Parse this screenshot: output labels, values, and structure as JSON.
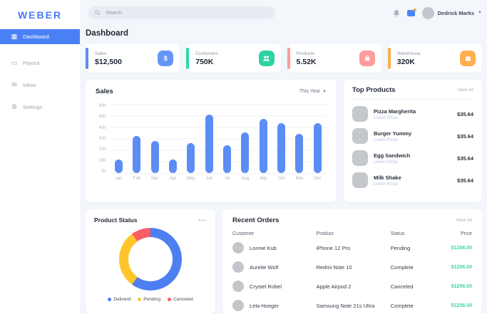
{
  "sidebar": {
    "logo": "WEBER",
    "items": [
      {
        "label": "Dashboard",
        "glyph": "▦"
      },
      {
        "label": "Payout",
        "glyph": "▭"
      },
      {
        "label": "Inbox",
        "glyph": "✉"
      },
      {
        "label": "Settings",
        "glyph": "⚙"
      }
    ]
  },
  "header": {
    "search_placeholder": "Search",
    "user_name": "Dedrick Marks"
  },
  "page_title": "Dashboard",
  "stats": [
    {
      "label": "Sales",
      "value": "$12,500",
      "accent": "#5b8df5",
      "icon_bg": "#6695fa",
      "glyph": "$"
    },
    {
      "label": "Customers",
      "value": "750K",
      "accent": "#2bd9a2",
      "icon_bg": "#2ed3a3"
    },
    {
      "label": "Products",
      "value": "5.52K",
      "accent": "#ff9b9b",
      "icon_bg": "#ff9b9b"
    },
    {
      "label": "Warehouse",
      "value": "320K",
      "accent": "#ffad4d",
      "icon_bg": "#ffad4d"
    }
  ],
  "sales_panel": {
    "title": "Sales",
    "filter": "This Year"
  },
  "top_products": {
    "title": "Top Products",
    "view_all": "View All",
    "items": [
      {
        "name": "Pizza Margherita",
        "subtitle": "Lorem Pizza",
        "price": "$35.64"
      },
      {
        "name": "Burger Yummy",
        "subtitle": "Lorem Pizza",
        "price": "$35.64"
      },
      {
        "name": "Egg Sandwich",
        "subtitle": "Lorem Pizza",
        "price": "$35.64"
      },
      {
        "name": "Milk Shake",
        "subtitle": "Lorem Pizza",
        "price": "$35.64"
      }
    ]
  },
  "product_status": {
    "title": "Product Status",
    "menu": "•••"
  },
  "recent_orders": {
    "title": "Recent Orders",
    "view_all": "View All",
    "columns": [
      "Customer",
      "Product",
      "Status",
      "Price"
    ],
    "price_color": "#41d3ae",
    "rows": [
      {
        "customer": "Lonnie Kub",
        "product": "iPhone 12 Pro",
        "status": "Pending",
        "price": "$1256.00"
      },
      {
        "customer": "Aurelie Wolf",
        "product": "Redmi Note 10",
        "status": "Complete",
        "price": "$1256.00"
      },
      {
        "customer": "Crystel Robel",
        "product": "Apple Airpod 2",
        "status": "Canceled",
        "price": "$1256.00"
      },
      {
        "customer": "Lela Hoeger",
        "product": "Samsung Note 21s Ultra",
        "status": "Complete",
        "price": "$1256.00"
      }
    ]
  },
  "chart_data": [
    {
      "type": "bar",
      "title": "Sales",
      "filter": "This Year",
      "bar_color": "#5b8df5",
      "ylim": [
        0,
        60
      ],
      "unit": "K",
      "yticks": [
        "60K",
        "50K",
        "40K",
        "30K",
        "20K",
        "10K",
        "0K"
      ],
      "bars": [
        {
          "label": "Jan",
          "value": 12
        },
        {
          "label": "Feb",
          "value": 32
        },
        {
          "label": "Mar",
          "value": 28
        },
        {
          "label": "Apr",
          "value": 12
        },
        {
          "label": "May",
          "value": 26
        },
        {
          "label": "Jun",
          "value": 51
        },
        {
          "label": "Jul",
          "value": 24
        },
        {
          "label": "Aug",
          "value": 35
        },
        {
          "label": "Sep",
          "value": 47
        },
        {
          "label": "Oct",
          "value": 43
        },
        {
          "label": "Nov",
          "value": 34
        },
        {
          "label": "Dec",
          "value": 43
        }
      ]
    },
    {
      "type": "donut",
      "title": "Product Status",
      "legend_position": "bottom",
      "slices": [
        {
          "label": "Deliverd",
          "value": 60,
          "color": "#4d7ff2"
        },
        {
          "label": "Pending",
          "value": 30,
          "color": "#ffc62b"
        },
        {
          "label": "Canceled",
          "value": 10,
          "color": "#fb5d64"
        }
      ]
    }
  ]
}
